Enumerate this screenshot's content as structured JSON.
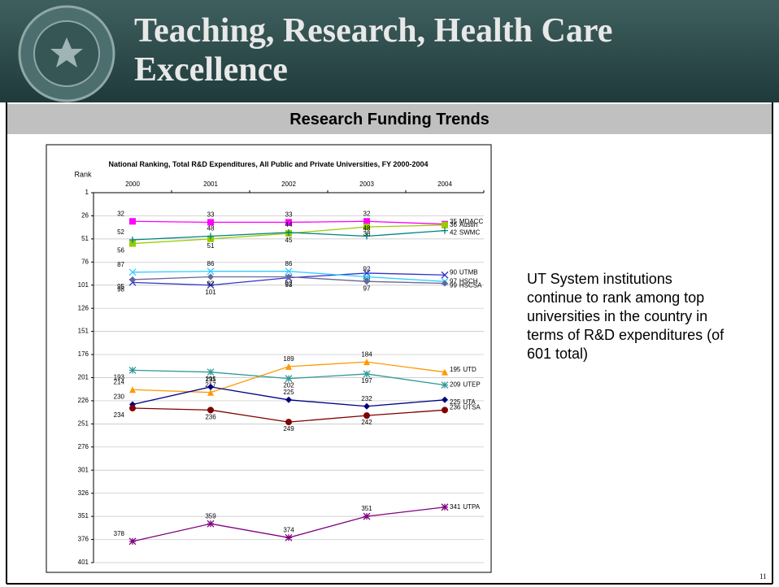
{
  "header": {
    "title": "Teaching, Research, Health Care Excellence",
    "subtitle": "Research Funding Trends"
  },
  "note": "UT System institutions continue to rank among top universities in the country in terms of R&D expenditures (of 601 total)",
  "page_number": "11",
  "chart_data": {
    "type": "line",
    "title": "National Ranking, Total R&D Expenditures, All Public and Private Universities, FY 2000-2004",
    "y_label": "Rank",
    "categories": [
      "2000",
      "2001",
      "2002",
      "2003",
      "2004"
    ],
    "ylim": [
      1,
      401
    ],
    "y_reversed": true,
    "yticks": [
      1,
      26,
      51,
      76,
      101,
      126,
      151,
      176,
      201,
      226,
      251,
      276,
      301,
      326,
      351,
      376,
      401
    ],
    "grid": true,
    "series": [
      {
        "name": "MDACC",
        "color": "#ff00ff",
        "marker": "square",
        "values": [
          32,
          33,
          33,
          32,
          35
        ]
      },
      {
        "name": "Austin",
        "color": "#99cc00",
        "marker": "square",
        "values": [
          56,
          51,
          45,
          38,
          36
        ]
      },
      {
        "name": "SWMC",
        "color": "#008080",
        "marker": "plus",
        "values": [
          52,
          48,
          44,
          48,
          42
        ]
      },
      {
        "name": "UTMB",
        "color": "#3333cc",
        "marker": "x",
        "values": [
          98,
          101,
          93,
          88,
          90
        ]
      },
      {
        "name": "HSCH",
        "color": "#33ccff",
        "marker": "x",
        "values": [
          87,
          86,
          86,
          92,
          97
        ]
      },
      {
        "name": "HSCSA",
        "color": "#666699",
        "marker": "diamond",
        "values": [
          95,
          92,
          92,
          97,
          99
        ]
      },
      {
        "name": "UTD",
        "color": "#ff9900",
        "marker": "triangle",
        "values": [
          214,
          217,
          189,
          184,
          195
        ]
      },
      {
        "name": "UTEP",
        "color": "#339999",
        "marker": "asterisk",
        "values": [
          193,
          195,
          202,
          197,
          209
        ]
      },
      {
        "name": "UTA",
        "color": "#000080",
        "marker": "diamond",
        "values": [
          230,
          211,
          225,
          232,
          225
        ]
      },
      {
        "name": "UTSA",
        "color": "#800000",
        "marker": "circle",
        "values": [
          234,
          236,
          249,
          242,
          236
        ]
      },
      {
        "name": "UTPA",
        "color": "#800080",
        "marker": "asterisk",
        "values": [
          378,
          359,
          374,
          351,
          341
        ]
      }
    ]
  }
}
